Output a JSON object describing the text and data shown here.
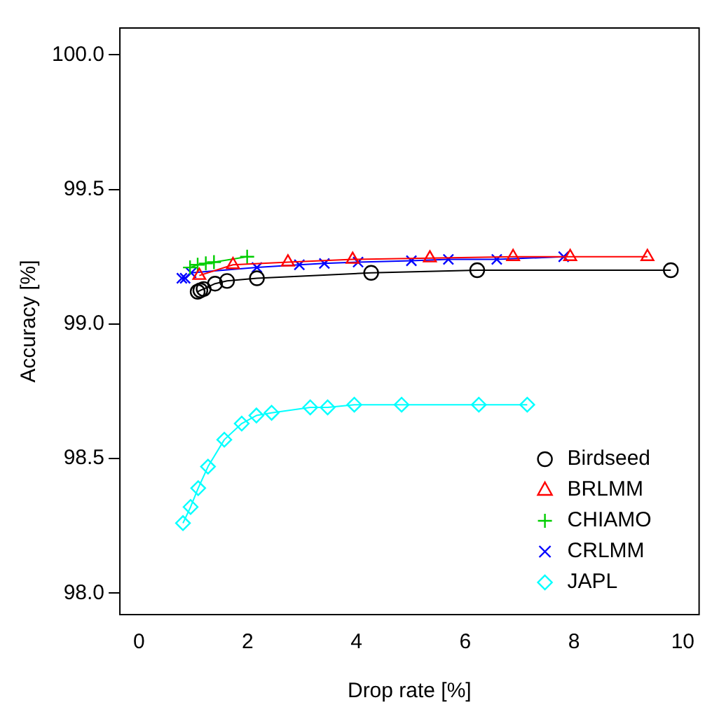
{
  "chart_data": {
    "type": "line",
    "xlabel": "Drop rate [%]",
    "ylabel": "Accuracy [%]",
    "xlim": [
      -0.35,
      10.3
    ],
    "ylim": [
      97.92,
      100.1
    ],
    "xticks": [
      0,
      2,
      4,
      6,
      8,
      10
    ],
    "yticks": [
      {
        "value": 98,
        "label": "98.0"
      },
      {
        "value": 98.5,
        "label": "98.5"
      },
      {
        "value": 99,
        "label": "99.0"
      },
      {
        "value": 99.5,
        "label": "99.5"
      },
      {
        "value": 100,
        "label": "100.0"
      }
    ],
    "grid": false,
    "legend": "bottom right",
    "series": [
      {
        "name": "Birdseed",
        "color": "#000000",
        "marker": "circle",
        "x": [
          1.08,
          1.13,
          1.19,
          1.4,
          1.62,
          2.17,
          4.27,
          6.22,
          9.78
        ],
        "values": [
          99.12,
          99.125,
          99.13,
          99.15,
          99.16,
          99.17,
          99.19,
          99.2,
          99.2
        ]
      },
      {
        "name": "BRLMM",
        "color": "#ff0000",
        "marker": "triangle",
        "x": [
          1.11,
          1.73,
          2.74,
          3.93,
          5.35,
          6.88,
          7.93,
          9.35
        ],
        "values": [
          99.18,
          99.22,
          99.23,
          99.24,
          99.245,
          99.25,
          99.25,
          99.25
        ]
      },
      {
        "name": "CHIAMO",
        "color": "#00cd00",
        "marker": "cross",
        "x": [
          0.94,
          1.08,
          1.23,
          1.38,
          1.99
        ],
        "values": [
          99.21,
          99.22,
          99.225,
          99.23,
          99.25
        ]
      },
      {
        "name": "CRLMM",
        "color": "#0000ff",
        "marker": "x",
        "x": [
          0.79,
          0.85,
          0.96,
          2.17,
          2.95,
          3.41,
          4.03,
          5.01,
          5.69,
          6.58,
          7.81
        ],
        "values": [
          99.17,
          99.17,
          99.19,
          99.21,
          99.22,
          99.225,
          99.23,
          99.235,
          99.24,
          99.24,
          99.25
        ]
      },
      {
        "name": "JAPL",
        "color": "#00ffff",
        "marker": "diamond",
        "x": [
          0.81,
          0.95,
          1.09,
          1.27,
          1.57,
          1.89,
          2.16,
          2.44,
          3.15,
          3.47,
          3.96,
          4.83,
          6.25,
          7.14
        ],
        "values": [
          98.26,
          98.32,
          98.39,
          98.47,
          98.57,
          98.63,
          98.66,
          98.67,
          98.69,
          98.69,
          98.7,
          98.7,
          98.7,
          98.7
        ]
      }
    ]
  }
}
